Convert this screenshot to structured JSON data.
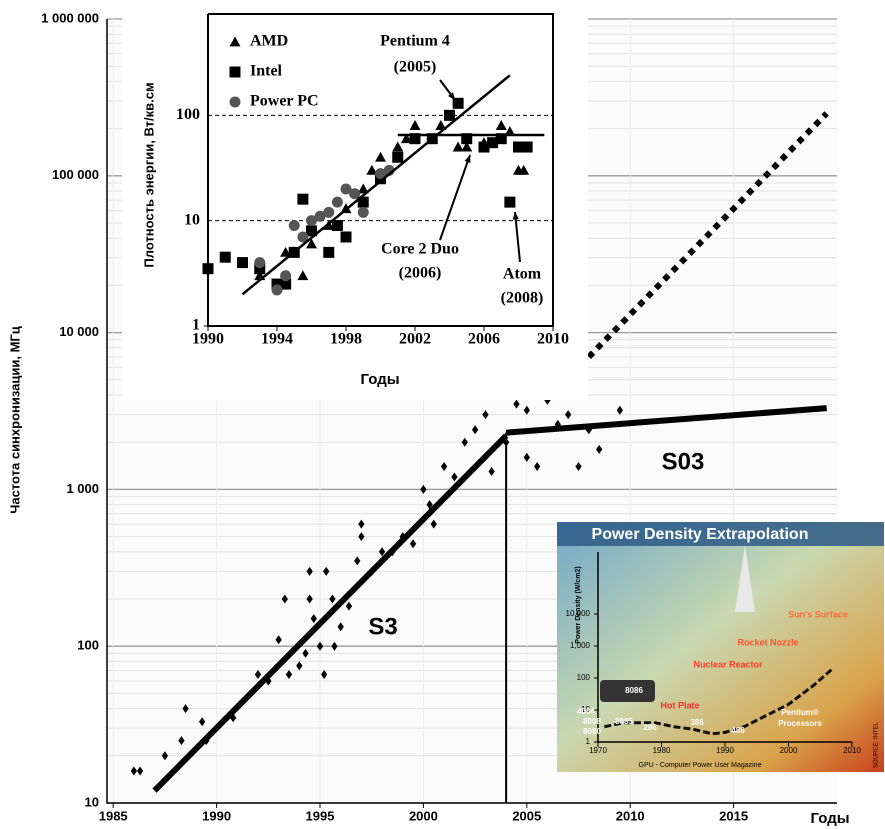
{
  "chart_data": [
    {
      "type": "scatter",
      "y_label": "Частота синхронизации, МГц",
      "x_label": "Годы",
      "xlim": [
        1984.7,
        2020
      ],
      "ylim": [
        10,
        1000000
      ],
      "log_y": true,
      "grid": true,
      "xticks": [
        1985,
        1990,
        1995,
        2000,
        2005,
        2010,
        2015
      ],
      "yticks": [
        10,
        100,
        {
          "value": 1000,
          "label": "1 000"
        },
        {
          "value": 10000,
          "label": "10 000"
        },
        {
          "value": 100000,
          "label": "100 000"
        },
        {
          "value": 1000000,
          "label": "1 000 000"
        }
      ],
      "series": [
        {
          "marker": "diamond",
          "color": "#000000",
          "x": [
            1986,
            1986.3,
            1987.5,
            1988.3,
            1988.5,
            1989.3,
            1989.5,
            1990.8,
            1992,
            1992.5,
            1993,
            1993.3,
            1993.5,
            1994,
            1994.3,
            1994.5,
            1994.5,
            1994.7,
            1995,
            1995.2,
            1995.3,
            1995.6,
            1995.7,
            1996,
            1996.4,
            1996.8,
            1997,
            1997,
            1997.5,
            1998,
            1998.5,
            1999,
            1999.5,
            2000,
            2000.3,
            2000.5,
            2001,
            2001.5,
            2002,
            2002.5,
            2003,
            2003.3,
            2004,
            2004.5,
            2005,
            2005,
            2005.5,
            2006,
            2006.5,
            2007,
            2007.5,
            2008,
            2008.5,
            2009.5
          ],
          "values": [
            16,
            16,
            20,
            25,
            40,
            33,
            25,
            35,
            66,
            60,
            110,
            200,
            66,
            75,
            90,
            300,
            200,
            150,
            100,
            66,
            300,
            200,
            100,
            133,
            180,
            350,
            600,
            500,
            300,
            400,
            400,
            500,
            450,
            1000,
            800,
            600,
            1400,
            1200,
            2000,
            2400,
            3000,
            1300,
            2000,
            3500,
            3200,
            1600,
            1400,
            3700,
            2600,
            3000,
            1400,
            2400,
            1800,
            3200
          ]
        },
        {
          "type": "line",
          "color": "#000000",
          "width": 6,
          "x": [
            1987,
            2004
          ],
          "values": [
            12,
            2200
          ]
        },
        {
          "type": "line",
          "color": "#000000",
          "width": 6,
          "x": [
            2004,
            2019.5
          ],
          "values": [
            2300,
            3300
          ]
        },
        {
          "type": "line",
          "color": "#000000",
          "width": 6,
          "dash": "dotted",
          "x": [
            2008,
            2019.5
          ],
          "values": [
            7000,
            250000
          ]
        },
        {
          "type": "line",
          "color": "#000000",
          "width": 2,
          "x": [
            2004,
            2004
          ],
          "values": [
            10,
            2300
          ]
        }
      ],
      "annotations": [
        "S3",
        "S03"
      ]
    },
    {
      "type": "scatter",
      "y_label": "Плотность энергии, Вт/кв.см",
      "x_label": "Годы",
      "xlim": [
        1990,
        2010
      ],
      "ylim": [
        1,
        1000
      ],
      "log_y": true,
      "grid": true,
      "xticks": [
        1990,
        1994,
        1998,
        2002,
        2006,
        2010
      ],
      "yticks": [
        1,
        10,
        100
      ],
      "legend": "top-left",
      "series": [
        {
          "name": "AMD",
          "marker": "triangle",
          "color": "#000000",
          "x": [
            1993,
            1994.5,
            1995.5,
            1996,
            1997,
            1998,
            1999,
            1999.5,
            2000,
            2001,
            2001.5,
            2002,
            2003,
            2003.5,
            2004.5,
            2005,
            2006,
            2007,
            2007.5,
            2008,
            2008.3
          ],
          "values": [
            3,
            5,
            3,
            6,
            9,
            13,
            20,
            30,
            40,
            50,
            60,
            80,
            60,
            80,
            50,
            50,
            55,
            80,
            70,
            30,
            30
          ]
        },
        {
          "name": "Intel",
          "marker": "square",
          "color": "#000000",
          "x": [
            1990,
            1991,
            1992,
            1993,
            1994,
            1994.5,
            1995,
            1995.5,
            1996,
            1997,
            1997.5,
            1998,
            1999,
            2000,
            2001,
            2002,
            2003,
            2004,
            2004.5,
            2005,
            2006,
            2006.5,
            2007,
            2007.5,
            2008,
            2008.5
          ],
          "values": [
            3.5,
            4.5,
            4,
            3.5,
            2.5,
            2.5,
            5,
            16,
            8,
            5,
            9,
            7,
            15,
            25,
            40,
            60,
            60,
            100,
            130,
            60,
            50,
            55,
            60,
            15,
            50,
            50
          ]
        },
        {
          "name": "Power PC",
          "marker": "circle",
          "color": "#555555",
          "x": [
            1993,
            1994,
            1994.5,
            1995,
            1995.5,
            1996,
            1996.5,
            1997,
            1997.5,
            1998,
            1998.5,
            1999,
            2000,
            2000.5
          ],
          "values": [
            4,
            2.2,
            3,
            9,
            7,
            10,
            11,
            12,
            15,
            20,
            18,
            12,
            28,
            30
          ]
        },
        {
          "type": "line",
          "color": "#000000",
          "width": 2.5,
          "x": [
            1992,
            2007.5
          ],
          "values": [
            2,
            240
          ]
        },
        {
          "type": "line",
          "color": "#000000",
          "width": 2.5,
          "x": [
            2001,
            2009.5
          ],
          "values": [
            65,
            65
          ]
        }
      ],
      "annotations": [
        "Pentium 4",
        "(2005)",
        "Core 2 Duo",
        "(2006)",
        "Atom",
        "(2008)"
      ]
    },
    {
      "type": "scatter",
      "title": "Power Density Extrapolation",
      "y_label": "Power Density (W/cm2)",
      "caption": "GPU - Computer Power User Magazine",
      "source": "SOURCE: INTEL",
      "xlim": [
        1970,
        2010
      ],
      "ylim": [
        1,
        100000
      ],
      "log_y": true,
      "xticks": [
        1970,
        1980,
        1990,
        2000,
        2010
      ],
      "yticks": [
        1,
        10,
        100,
        {
          "value": 1000,
          "label": "1,000"
        },
        {
          "value": 10000,
          "label": "10,000"
        }
      ],
      "series": [
        {
          "type": "line",
          "color": "#111111",
          "width": 3,
          "dash": "dashed",
          "x": [
            1971,
            1974,
            1976,
            1979,
            1982,
            1985,
            1988,
            1990,
            1993,
            1996,
            2000,
            2004,
            2007
          ],
          "values": [
            3,
            4,
            4,
            4,
            3,
            2.5,
            1.8,
            2,
            3,
            6,
            15,
            60,
            200
          ]
        }
      ],
      "annotations": [
        "Sun's Surface",
        "Rocket Nozzle",
        "Nuclear Reactor",
        "Hot Plate",
        "Pentium®",
        "Processors",
        "4004",
        "8008",
        "8080",
        "8085",
        "8086",
        "286",
        "386",
        "486"
      ]
    }
  ]
}
